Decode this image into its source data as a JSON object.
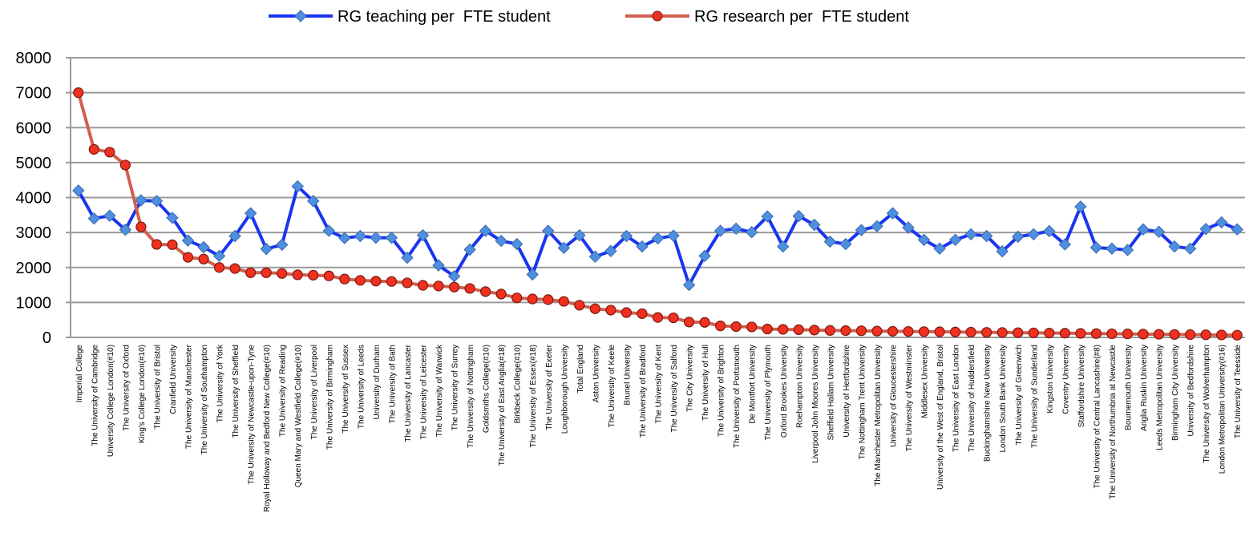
{
  "chart_data": {
    "type": "line",
    "categories": [
      "Imperial College",
      "The University of Cambridge",
      "University College London(#10)",
      "The University of Oxford",
      "King's College London(#10)",
      "The University of Bristol",
      "Cranfield University",
      "The University of Manchester",
      "The University of Southampton",
      "The University of York",
      "The University of Sheffield",
      "The University of Newcastle-upon-Tyne",
      "Royal Holloway and Bedford New College(#10)",
      "The University of Reading",
      "Queen Mary and Westfield College(#10)",
      "The University of Liverpool",
      "The University of Birmingham",
      "The University of Sussex",
      "The University of Leeds",
      "University of Durham",
      "The University of Bath",
      "The University of Lancaster",
      "The University of Leicester",
      "The University of Warwick",
      "The University of Surrey",
      "The University of Nottingham",
      "Goldsmiths College(#10)",
      "The University of East Anglia(#18)",
      "Birkbeck College(#10)",
      "The University of Essex(#18)",
      "The University of Exeter",
      "Loughborough University",
      "Total England",
      "Aston University",
      "The University of Keele",
      "Brunel University",
      "The University of Bradford",
      "The University of Kent",
      "The University of Salford",
      "The City University",
      "The University of Hull",
      "The University of Brighton",
      "The University of Portsmouth",
      "De Montfort University",
      "The University of Plymouth",
      "Oxford Brookes University",
      "Roehampton University",
      "Liverpool John Moores University",
      "Sheffield Hallam University",
      "University of Hertfordshire",
      "The Nottingham Trent University",
      "The Manchester Metropolitan University",
      "University of Gloucestershire",
      "The University of Westminster",
      "Middlesex University",
      "University of the West of England, Bristol",
      "The University of East London",
      "The University of Huddersfield",
      "Buckinghamshire New University",
      "London South Bank University",
      "The University of Greenwich",
      "The University of Sunderland",
      "Kingston University",
      "Coventry University",
      "Staffordshire University",
      "The University of Central Lancashire(#8)",
      "The University of Northumbria at Newcastle",
      "Bournemouth University",
      "Anglia Ruskin University",
      "Leeds Metropolitan University",
      "Birmingham City University",
      "University of Bedfordshire",
      "The University of Wolverhampton",
      "London Metropolitan University(#16)",
      "The University of Teesside"
    ],
    "series": [
      {
        "name": "RG teaching per  FTE student",
        "color": "#1a35f0",
        "marker_color": "#4f8fe0",
        "values": [
          4200,
          3400,
          3480,
          3080,
          3920,
          3900,
          3420,
          2770,
          2580,
          2330,
          2900,
          3550,
          2530,
          2650,
          4320,
          3900,
          3050,
          2840,
          2900,
          2850,
          2850,
          2280,
          2920,
          2060,
          1750,
          2510,
          3050,
          2760,
          2670,
          1800,
          3050,
          2560,
          2920,
          2310,
          2470,
          2900,
          2600,
          2830,
          2910,
          1500,
          2330,
          3050,
          3110,
          3010,
          3460,
          2600,
          3470,
          3220,
          2740,
          2670,
          3070,
          3180,
          3550,
          3140,
          2790,
          2540,
          2790,
          2950,
          2900,
          2460,
          2880,
          2950,
          3040,
          2660,
          3740,
          2570,
          2540,
          2500,
          3090,
          3020,
          2600,
          2540,
          3100,
          3290,
          3090
        ]
      },
      {
        "name": "RG research per  FTE student",
        "color": "#d0604f",
        "marker_color": "#f03020",
        "values": [
          7000,
          5380,
          5300,
          4930,
          3160,
          2660,
          2650,
          2290,
          2240,
          2000,
          1970,
          1850,
          1850,
          1830,
          1790,
          1780,
          1760,
          1670,
          1630,
          1610,
          1600,
          1560,
          1490,
          1470,
          1440,
          1400,
          1310,
          1240,
          1130,
          1100,
          1080,
          1030,
          920,
          820,
          780,
          710,
          680,
          570,
          560,
          440,
          430,
          330,
          310,
          300,
          240,
          230,
          220,
          210,
          200,
          195,
          190,
          180,
          175,
          170,
          165,
          160,
          155,
          150,
          145,
          140,
          135,
          130,
          125,
          120,
          115,
          110,
          105,
          100,
          95,
          90,
          85,
          80,
          75,
          70,
          65
        ]
      }
    ],
    "ylim": [
      0,
      8000
    ],
    "yticks": [
      0,
      1000,
      2000,
      3000,
      4000,
      5000,
      6000,
      7000,
      8000
    ],
    "grid": true,
    "legend": "top"
  }
}
